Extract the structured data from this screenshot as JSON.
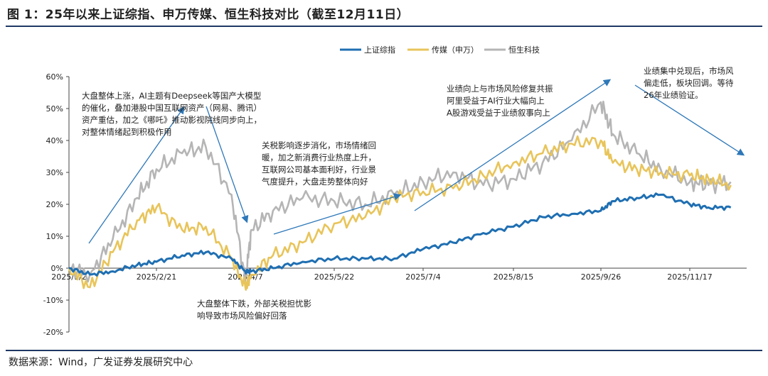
{
  "title": "图 1：25年以来上证综指、申万传媒、恒生科技对比（截至12月11日）",
  "source": "数据来源：Wind，广发证券发展研究中心",
  "chart_data": {
    "type": "line",
    "title": "图 1：25年以来上证综指、申万传媒、恒生科技对比（截至12月11日）",
    "xlabel": "",
    "ylabel": "",
    "ylim": [
      -20,
      60
    ],
    "yticks": [
      "60%",
      "50%",
      "40%",
      "30%",
      "20%",
      "10%",
      "0%",
      "-10%",
      "-20%"
    ],
    "xticks": [
      "2025/1/2",
      "2025/2/21",
      "2025/4/7",
      "2025/5/22",
      "2025/7/4",
      "2025/8/15",
      "2025/9/26",
      "2025/11/17"
    ],
    "legend_position": "top-center",
    "x": [
      "2025/1/2",
      "2025/1/14",
      "2025/1/27",
      "2025/2/10",
      "2025/2/21",
      "2025/3/6",
      "2025/3/18",
      "2025/3/31",
      "2025/4/7",
      "2025/4/10",
      "2025/4/21",
      "2025/5/6",
      "2025/5/22",
      "2025/6/6",
      "2025/6/20",
      "2025/7/4",
      "2025/7/18",
      "2025/8/1",
      "2025/8/15",
      "2025/8/29",
      "2025/9/12",
      "2025/9/26",
      "2025/10/3",
      "2025/10/17",
      "2025/10/31",
      "2025/11/17",
      "2025/11/28",
      "2025/12/11"
    ],
    "series": [
      {
        "name": "上证综指",
        "color": "#1f6fb2",
        "values": [
          0,
          -2,
          -1,
          1,
          2,
          4,
          5,
          3,
          -1,
          -1,
          0,
          2,
          3,
          3,
          3,
          6,
          8,
          11,
          13,
          16,
          17,
          18,
          21,
          22,
          23,
          20,
          19,
          19
        ]
      },
      {
        "name": "传媒（申万）",
        "color": "#e8c45a",
        "values": [
          0,
          -6,
          5,
          15,
          19,
          12,
          13,
          3,
          -6,
          -2,
          4,
          8,
          14,
          16,
          22,
          24,
          25,
          29,
          33,
          36,
          39,
          40,
          33,
          31,
          30,
          29,
          28,
          26
        ]
      },
      {
        "name": "恒生科技",
        "color": "#b5b5b5",
        "values": [
          0,
          -2,
          9,
          22,
          31,
          36,
          38,
          23,
          -4,
          12,
          18,
          22,
          21,
          20,
          23,
          27,
          30,
          26,
          28,
          33,
          40,
          52,
          42,
          36,
          31,
          27,
          26,
          27
        ]
      }
    ],
    "annotations": [
      {
        "text": "大盘整体上涨，AI主题有Deepseek等国产大模型的催化，叠加港股中国互联网资产（网易、腾讯）资产重估，加之《哪吒》推动影视院线同步向上，对整体情绪起到积极作用",
        "lines": [
          "大盘整体上涨，AI主题有Deepseek等国产大模型",
          "的催化，叠加港股中国互联网资产（网易、腾讯）",
          "资产重估，加之《哪吒》推动影视院线同步向上，",
          "对整体情绪起到积极作用"
        ]
      },
      {
        "text": "大盘整体下跌，外部关税担忧影响导致市场风险偏好回落",
        "lines": [
          "大盘整体下跌，外部关税担忧影",
          "响导致市场风险偏好回落"
        ]
      },
      {
        "text": "关税影响逐步消化，市场情绪回暖，加之新消费行业热度上升，互联网公司基本面利好，行业景气度提升，大盘走势整体向好",
        "lines": [
          "关税影响逐步消化，市场情绪回",
          "暖，加之新消费行业热度上升，",
          "互联网公司基本面利好，行业景",
          "气度提升，大盘走势整体向好"
        ]
      },
      {
        "text": "业绩向上与市场风险修复共振阿里受益于AI行业大幅向上A股游戏受益于业绩叙事向上",
        "lines": [
          "业绩向上与市场风险修复共振",
          "阿里受益于AI行业大幅向上",
          "A股游戏受益于业绩叙事向上"
        ]
      },
      {
        "text": "业绩集中兑现后，市场风偏走低，板块回调。等待26年业绩验证。",
        "lines": [
          "业绩集中兑现后，市场风",
          "偏走低，板块回调。等待",
          "26年业绩验证。"
        ]
      }
    ]
  }
}
